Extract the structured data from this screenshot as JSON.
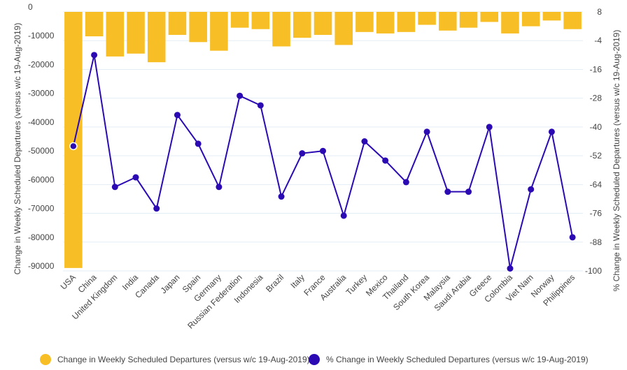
{
  "colors": {
    "bar": "#f7be25",
    "line": "#2b0ab3",
    "grid": "#e3edf5"
  },
  "chart_data": {
    "type": "bar+line",
    "categories": [
      "USA",
      "China",
      "United Kingdom",
      "India",
      "Canada",
      "Japan",
      "Spain",
      "Germany",
      "Russian Federation",
      "Indonesia",
      "Brazil",
      "Italy",
      "France",
      "Australia",
      "Turkey",
      "Mexico",
      "Thailand",
      "South Korea",
      "Malaysia",
      "Saudi Arabia",
      "Greece",
      "Colombia",
      "Viet Nam",
      "Norway",
      "Philippines"
    ],
    "series": [
      {
        "name": "Change in Weekly Scheduled Departures (versus w/c 19-Aug-2019)",
        "axis": "left",
        "values": [
          -89000,
          -8500,
          -15500,
          -14500,
          -17500,
          -8000,
          -10500,
          -13500,
          -5500,
          -6000,
          -12000,
          -9000,
          -8000,
          -11500,
          -7000,
          -7500,
          -7000,
          -4500,
          -6500,
          -5500,
          -3500,
          -7500,
          -5000,
          -3000,
          -6000
        ]
      },
      {
        "name": "% Change in Weekly Scheduled Departures (versus w/c 19-Aug-2019)",
        "axis": "right",
        "values": [
          -48,
          -10,
          -65,
          -61,
          -74,
          -35,
          -47,
          -65,
          -27,
          -31,
          -69,
          -51,
          -50,
          -77,
          -46,
          -54,
          -63,
          -42,
          -67,
          -67,
          -40,
          -99,
          -66,
          -42,
          -86
        ]
      }
    ],
    "y_left": {
      "label": "Change in Weekly Scheduled Departures (versus w/c 19-Aug-2019)",
      "range": [
        -90000,
        0
      ],
      "ticks": [
        "0",
        "-10000",
        "-20000",
        "-30000",
        "-40000",
        "-50000",
        "-60000",
        "-70000",
        "-80000",
        "-90000"
      ]
    },
    "y_right": {
      "label": "% Change in Weekly Scheduled Departures (versus w/c 19-Aug-2019)",
      "range": [
        -100,
        8
      ],
      "ticks": [
        "8",
        "-4",
        "-16",
        "-28",
        "-40",
        "-52",
        "-64",
        "-76",
        "-88",
        "-100"
      ]
    },
    "grid": true,
    "legend_position": "bottom"
  },
  "legend": {
    "bar_label": "Change in Weekly Scheduled Departures (versus w/c 19-Aug-2019)",
    "line_label": "% Change in Weekly Scheduled Departures (versus w/c 19-Aug-2019)"
  }
}
